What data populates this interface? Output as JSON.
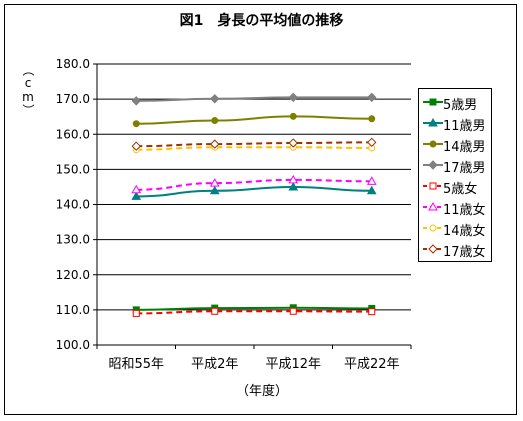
{
  "chart_data": {
    "type": "line",
    "title": "図1　身長の平均値の推移",
    "xlabel": "（年度）",
    "ylabel": "（cm）",
    "categories": [
      "昭和55年",
      "平成2年",
      "平成12年",
      "平成22年"
    ],
    "ylim": [
      100.0,
      180.0
    ],
    "yticks": [
      "100.0",
      "110.0",
      "120.0",
      "130.0",
      "140.0",
      "150.0",
      "160.0",
      "170.0",
      "180.0"
    ],
    "grid": true,
    "legend_position": "right",
    "series": [
      {
        "name": "5歳男",
        "values": [
          110.0,
          110.5,
          110.6,
          110.4
        ],
        "color": "#008000",
        "dash": false,
        "marker": "square-filled"
      },
      {
        "name": "11歳男",
        "values": [
          142.3,
          143.9,
          145.0,
          143.9
        ],
        "color": "#008080",
        "dash": false,
        "marker": "triangle-filled"
      },
      {
        "name": "14歳男",
        "values": [
          163.0,
          163.9,
          165.1,
          164.4
        ],
        "color": "#808000",
        "dash": false,
        "marker": "circle-filled"
      },
      {
        "name": "17歳男",
        "values": [
          169.5,
          170.1,
          170.5,
          170.5
        ],
        "color": "#808080",
        "dash": false,
        "marker": "diamond-filled"
      },
      {
        "name": "5歳女",
        "values": [
          109.0,
          109.6,
          109.6,
          109.5
        ],
        "color": "#ff0000",
        "dash": true,
        "marker": "square-open"
      },
      {
        "name": "11歳女",
        "values": [
          144.2,
          146.1,
          147.0,
          146.6
        ],
        "color": "#ff00ff",
        "dash": true,
        "marker": "triangle-open"
      },
      {
        "name": "14歳女",
        "values": [
          155.6,
          156.3,
          156.3,
          156.1
        ],
        "color": "#ffc000",
        "dash": true,
        "marker": "circle-open"
      },
      {
        "name": "17歳女",
        "values": [
          156.6,
          157.2,
          157.5,
          157.7
        ],
        "color": "#993300",
        "dash": true,
        "marker": "diamond-open"
      }
    ]
  }
}
